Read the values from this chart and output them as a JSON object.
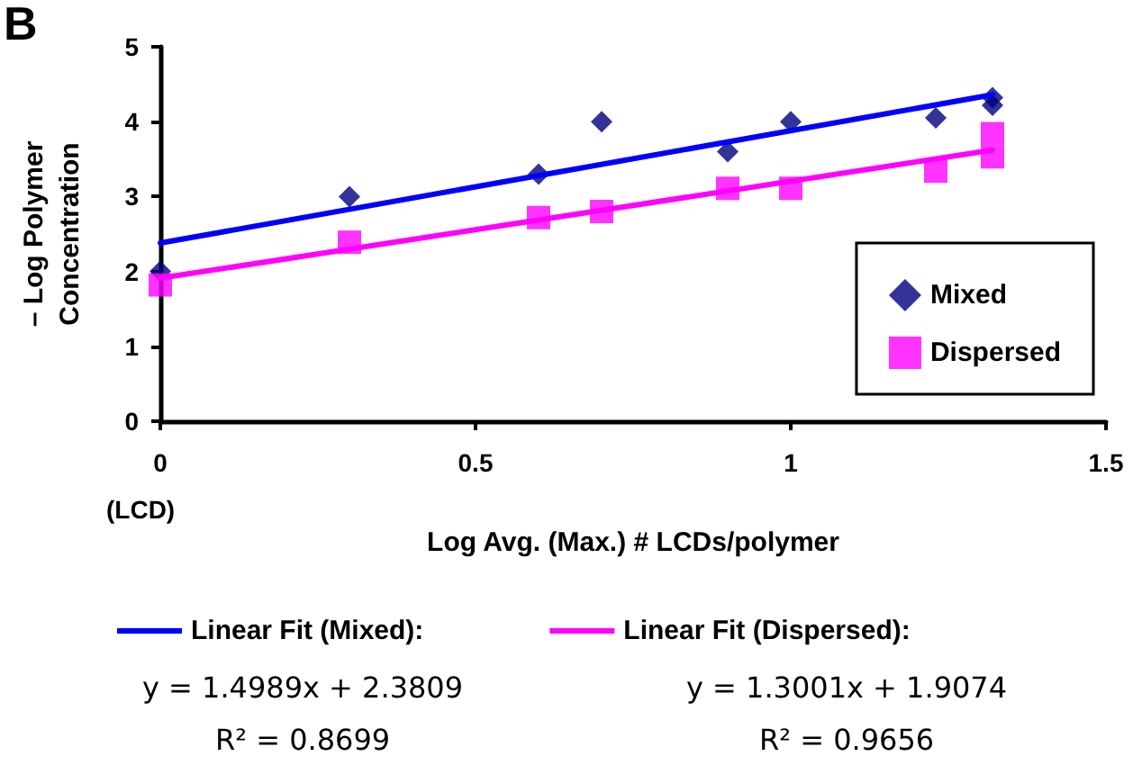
{
  "chart_data": {
    "type": "scatter",
    "title": "B",
    "xlabel": "Log Avg. (Max.) # LCDs/polymer",
    "ylabel": "– Log Polymer\nConcentration",
    "xlim": [
      0,
      1.5
    ],
    "xticks": [
      0,
      0.5,
      1,
      1.5
    ],
    "ylim": [
      0,
      5
    ],
    "yticks": [
      0,
      1,
      2,
      3,
      4,
      5
    ],
    "grid": false,
    "legend": "right",
    "series": [
      {
        "name": "Mixed",
        "marker": "diamond",
        "color": "#000080",
        "x": [
          0,
          0.3,
          0.6,
          0.7,
          0.9,
          1.0,
          1.23,
          1.32,
          1.32
        ],
        "values": [
          2.0,
          3.0,
          3.3,
          4.0,
          3.6,
          4.0,
          4.05,
          4.32,
          4.22
        ]
      },
      {
        "name": "Dispersed",
        "marker": "square",
        "color": "#ff00ff",
        "x": [
          0,
          0.3,
          0.6,
          0.7,
          0.9,
          1.0,
          1.23,
          1.32,
          1.32
        ],
        "values": [
          1.82,
          2.39,
          2.72,
          2.8,
          3.11,
          3.11,
          3.34,
          3.84,
          3.53
        ]
      },
      {
        "name": "Linear Fit (Mixed):",
        "type": "line",
        "marker": "none",
        "color": "#0000ff",
        "x": [
          0,
          1.32
        ],
        "values": [
          2.38,
          4.36
        ]
      },
      {
        "name": "Linear Fit (Dispersed):",
        "type": "line",
        "marker": "none",
        "color": "#ff00ff",
        "x": [
          0,
          1.32
        ],
        "values": [
          1.91,
          3.62
        ]
      }
    ],
    "annotations": [
      "(LCD)",
      "y = 1.4989x + 2.3809",
      "y = 1.3001x + 1.9074",
      "R² = 0.8699",
      "R² = 0.9656"
    ]
  }
}
